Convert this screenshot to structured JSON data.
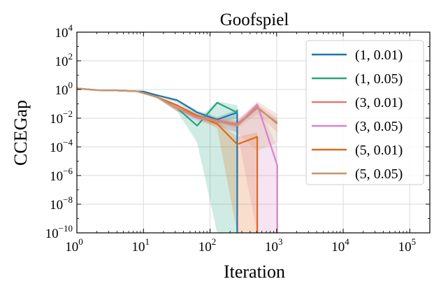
{
  "chart_data": {
    "type": "line",
    "title": "Goofspiel",
    "xlabel": "Iteration",
    "ylabel": "CCEGap",
    "xscale": "log",
    "yscale": "log",
    "xlim": [
      1,
      200000
    ],
    "ylim": [
      1e-10,
      10000
    ],
    "grid": true,
    "legend_position": "top-right",
    "x_ticks": [
      {
        "value": 1,
        "base": "10",
        "exp": "0"
      },
      {
        "value": 10,
        "base": "10",
        "exp": "1"
      },
      {
        "value": 100,
        "base": "10",
        "exp": "2"
      },
      {
        "value": 1000,
        "base": "10",
        "exp": "3"
      },
      {
        "value": 10000,
        "base": "10",
        "exp": "4"
      },
      {
        "value": 100000,
        "base": "10",
        "exp": "5"
      }
    ],
    "y_ticks": [
      {
        "value": 1e-10,
        "base": "10",
        "exp": "−10"
      },
      {
        "value": 1e-08,
        "base": "10",
        "exp": "−8"
      },
      {
        "value": 1e-06,
        "base": "10",
        "exp": "−6"
      },
      {
        "value": 0.0001,
        "base": "10",
        "exp": "−4"
      },
      {
        "value": 0.01,
        "base": "10",
        "exp": "−2"
      },
      {
        "value": 1,
        "base": "10",
        "exp": "0"
      },
      {
        "value": 100,
        "base": "10",
        "exp": "2"
      },
      {
        "value": 10000,
        "base": "10",
        "exp": "4"
      }
    ],
    "series": [
      {
        "name": "(1, 0.01)",
        "color": "#1f77a8",
        "x": [
          1,
          2,
          4,
          8,
          10,
          16,
          32,
          64,
          128,
          256,
          256
        ],
        "y": [
          1.2,
          0.9,
          0.85,
          0.75,
          0.72,
          0.4,
          0.18,
          0.025,
          0.008,
          0.025,
          1e-10
        ],
        "lower": [
          1.1,
          0.85,
          0.8,
          0.7,
          0.68,
          0.35,
          0.12,
          0.015,
          0.004,
          0.01,
          1e-10
        ],
        "upper": [
          1.3,
          0.95,
          0.9,
          0.8,
          0.76,
          0.45,
          0.22,
          0.035,
          0.012,
          0.04,
          1e-10
        ]
      },
      {
        "name": "(1, 0.05)",
        "color": "#27a37f",
        "x": [
          1,
          2,
          4,
          8,
          16,
          32,
          64,
          128,
          256,
          256
        ],
        "y": [
          1.2,
          0.9,
          0.85,
          0.75,
          0.3,
          0.05,
          0.003,
          0.12,
          0.025,
          0.04
        ],
        "lower": [
          1.1,
          0.85,
          0.8,
          0.7,
          0.25,
          0.03,
          0.0002,
          1e-10,
          1e-10,
          1e-10
        ],
        "upper": [
          1.3,
          0.95,
          0.9,
          0.8,
          0.35,
          0.07,
          0.008,
          0.15,
          0.08,
          0.08
        ]
      },
      {
        "name": "(3, 0.01)",
        "color": "#e07a7a",
        "x": [
          1,
          2,
          4,
          8,
          16,
          32,
          64,
          128,
          256,
          512,
          1024
        ],
        "y": [
          1.2,
          0.9,
          0.85,
          0.75,
          0.3,
          0.05,
          0.015,
          0.007,
          0.004,
          0.06,
          0.004
        ],
        "lower": [
          1.1,
          0.85,
          0.8,
          0.7,
          0.25,
          0.03,
          0.01,
          0.004,
          0.002,
          0.02,
          0.001
        ],
        "upper": [
          1.3,
          0.95,
          0.9,
          0.8,
          0.35,
          0.07,
          0.02,
          0.01,
          0.008,
          0.1,
          0.01
        ]
      },
      {
        "name": "(3, 0.05)",
        "color": "#d884c8",
        "x": [
          1,
          2,
          4,
          8,
          16,
          32,
          64,
          128,
          256,
          512,
          1024,
          1024
        ],
        "y": [
          1.2,
          0.9,
          0.85,
          0.75,
          0.3,
          0.05,
          0.01,
          0.006,
          0.003,
          0.09,
          5e-06,
          1e-10
        ],
        "lower": [
          1.1,
          0.85,
          0.8,
          0.7,
          0.25,
          0.03,
          0.006,
          0.003,
          0.001,
          1e-10,
          1e-10,
          1e-10
        ],
        "upper": [
          1.3,
          0.95,
          0.9,
          0.8,
          0.35,
          0.07,
          0.015,
          0.01,
          0.006,
          0.12,
          0.0001,
          1e-10
        ]
      },
      {
        "name": "(5, 0.01)",
        "color": "#e06a1a",
        "x": [
          1,
          2,
          4,
          8,
          16,
          32,
          64,
          128,
          256,
          512,
          512
        ],
        "y": [
          1.2,
          0.9,
          0.85,
          0.75,
          0.3,
          0.08,
          0.015,
          0.004,
          0.00015,
          0.0005,
          1e-10
        ],
        "lower": [
          1.1,
          0.85,
          0.8,
          0.7,
          0.25,
          0.06,
          0.01,
          0.002,
          1e-10,
          1e-10,
          1e-10
        ],
        "upper": [
          1.3,
          0.95,
          0.9,
          0.8,
          0.35,
          0.1,
          0.02,
          0.006,
          0.0005,
          0.001,
          1e-10
        ]
      },
      {
        "name": "(5, 0.05)",
        "color": "#c8956a",
        "x": [
          1,
          2,
          4,
          8,
          16,
          32,
          64,
          128,
          256,
          512,
          1024
        ],
        "y": [
          1.2,
          0.9,
          0.85,
          0.75,
          0.3,
          0.05,
          0.012,
          0.006,
          0.003,
          0.05,
          0.005
        ],
        "lower": [
          1.1,
          0.85,
          0.8,
          0.7,
          0.25,
          0.03,
          0.008,
          0.003,
          0.001,
          5e-05,
          0.0002
        ],
        "upper": [
          1.3,
          0.95,
          0.9,
          0.8,
          0.35,
          0.07,
          0.018,
          0.01,
          0.006,
          0.15,
          0.02
        ]
      }
    ]
  }
}
